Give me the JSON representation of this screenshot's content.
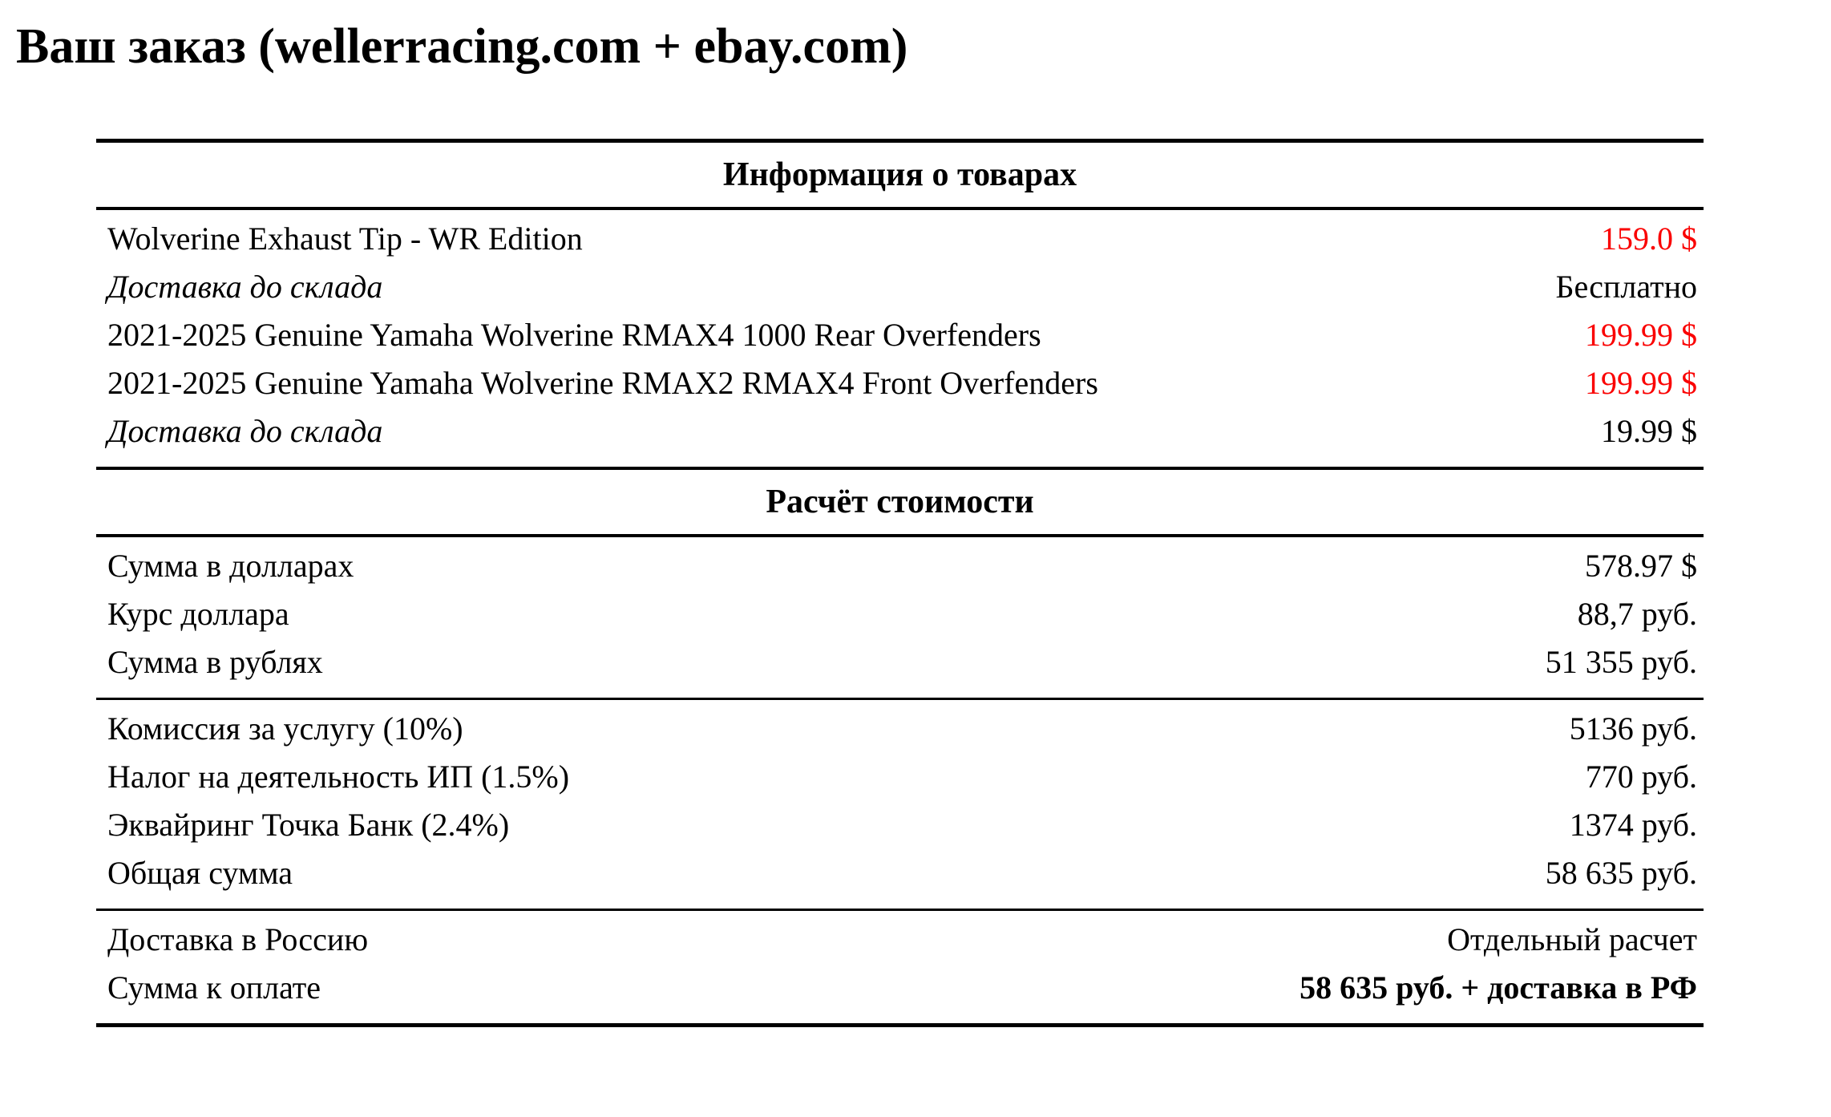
{
  "page": {
    "title": "Ваш заказ (wellerracing.com + ebay.com)"
  },
  "colors": {
    "text": "#000000",
    "price_red": "#fa0000",
    "background": "#ffffff",
    "rule": "#000000"
  },
  "table": {
    "sections": [
      {
        "header": "Информация о товарах",
        "groups": [
          {
            "rows": [
              {
                "label": "Wolverine Exhaust Tip - WR Edition",
                "value": "159.0 $",
                "value_red": true
              },
              {
                "label": "Доставка до склада",
                "value": "Бесплатно",
                "label_italic": true
              },
              {
                "label": "2021-2025 Genuine Yamaha Wolverine RMAX4 1000 Rear Overfenders",
                "value": "199.99 $",
                "value_red": true
              },
              {
                "label": "2021-2025 Genuine Yamaha Wolverine RMAX2 RMAX4 Front Overfenders",
                "value": "199.99 $",
                "value_red": true
              },
              {
                "label": "Доставка до склада",
                "value": "19.99 $",
                "label_italic": true
              }
            ]
          }
        ]
      },
      {
        "header": "Расчёт стоимости",
        "groups": [
          {
            "rows": [
              {
                "label": "Сумма в долларах",
                "value": "578.97 $"
              },
              {
                "label": "Курс доллара",
                "value": "88,7 руб."
              },
              {
                "label": "Сумма в рублях",
                "value": "51 355 руб."
              }
            ]
          },
          {
            "rows": [
              {
                "label": "Комиссия за услугу (10%)",
                "value": "5136 руб."
              },
              {
                "label": "Налог на деятельность ИП (1.5%)",
                "value": "770 руб."
              },
              {
                "label": "Эквайринг Точка Банк (2.4%)",
                "value": "1374 руб."
              },
              {
                "label": "Общая сумма",
                "value": "58 635 руб."
              }
            ]
          },
          {
            "rows": [
              {
                "label": "Доставка в Россию",
                "value": "Отдельный расчет"
              },
              {
                "label": "Сумма к оплате",
                "value": "58 635 руб. + доставка в РФ",
                "value_bold": true
              }
            ]
          }
        ]
      }
    ]
  }
}
